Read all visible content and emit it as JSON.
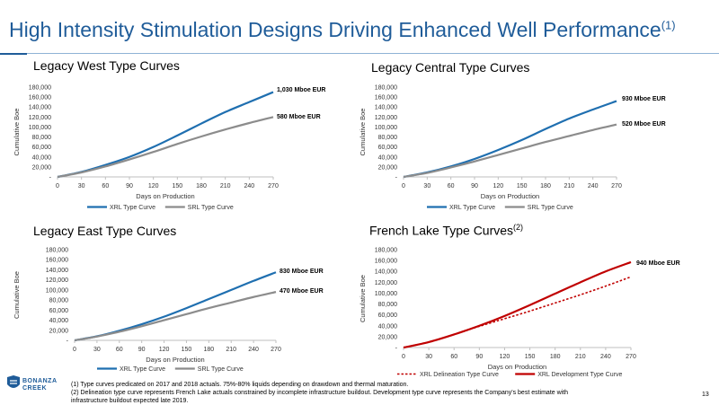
{
  "page": {
    "title": "High Intensity Stimulation Designs Driving Enhanced Well Performance",
    "title_sup": "(1)",
    "footnote1": "(1) Type curves predicated on 2017 and 2018 actuals. 75%-80% liquids depending on drawdown and thermal maturation.",
    "footnote2": "(2) Delineation type curve represents French Lake actuals constrained by incomplete infrastructure buildout. Development type curve represents the Company's best estimate with",
    "footnote3": "infrastructure buildout expected late 2019.",
    "page_number": "13",
    "logo_text_1": "BONANZA",
    "logo_text_2": "CREEK",
    "colors": {
      "title": "#1f5c99",
      "xrl": "#1f6fb0",
      "srl": "#8c8c8c",
      "french": "#c00000"
    }
  },
  "chart_data": [
    {
      "type": "line",
      "title": "Legacy West Type Curves",
      "title_sup": "",
      "xlabel": "Days on Production",
      "ylabel": "Cumulative Boe",
      "x_ticks": [
        "0",
        "30",
        "60",
        "90",
        "120",
        "150",
        "180",
        "210",
        "240",
        "270"
      ],
      "y_ticks": [
        "-",
        "20,000",
        "40,000",
        "60,000",
        "80,000",
        "100,000",
        "120,000",
        "140,000",
        "160,000",
        "180,000"
      ],
      "xlim": [
        0,
        270
      ],
      "ylim": [
        0,
        180000
      ],
      "x": [
        0,
        30,
        60,
        90,
        120,
        150,
        180,
        210,
        240,
        270
      ],
      "series": [
        {
          "name": "XRL Type Curve",
          "values": [
            0,
            10000,
            24000,
            40000,
            60000,
            83000,
            107000,
            130000,
            150000,
            170000
          ],
          "color": "#1f6fb0",
          "dash": false
        },
        {
          "name": "SRL Type Curve",
          "values": [
            0,
            9000,
            21000,
            35000,
            50000,
            66000,
            81000,
            95000,
            108000,
            120000
          ],
          "color": "#8c8c8c",
          "dash": false
        }
      ],
      "annotations": [
        "1,030 Mboe EUR",
        "580 Mboe EUR"
      ],
      "legend": "bottom"
    },
    {
      "type": "line",
      "title": "Legacy Central Type Curves",
      "title_sup": "",
      "xlabel": "Days on Production",
      "ylabel": "Cumulative Boe",
      "x_ticks": [
        "0",
        "30",
        "60",
        "90",
        "120",
        "150",
        "180",
        "210",
        "240",
        "270"
      ],
      "y_ticks": [
        "-",
        "20,000",
        "40,000",
        "60,000",
        "80,000",
        "100,000",
        "120,000",
        "140,000",
        "160,000",
        "180,000"
      ],
      "xlim": [
        0,
        270
      ],
      "ylim": [
        0,
        180000
      ],
      "x": [
        0,
        30,
        60,
        90,
        120,
        150,
        180,
        210,
        240,
        270
      ],
      "series": [
        {
          "name": "XRL Type Curve",
          "values": [
            0,
            9000,
            21000,
            36000,
            54000,
            74000,
            96000,
            117000,
            135000,
            152000
          ],
          "color": "#1f6fb0",
          "dash": false
        },
        {
          "name": "SRL Type Curve",
          "values": [
            0,
            8000,
            19000,
            31000,
            44000,
            57000,
            70000,
            82000,
            94000,
            105000
          ],
          "color": "#8c8c8c",
          "dash": false
        }
      ],
      "annotations": [
        "930 Mboe EUR",
        "520 Mboe EUR"
      ],
      "legend": "bottom"
    },
    {
      "type": "line",
      "title": "Legacy East Type Curves",
      "title_sup": "",
      "xlabel": "Days on Production",
      "ylabel": "Cumulative Boe",
      "x_ticks": [
        "0",
        "30",
        "60",
        "90",
        "120",
        "150",
        "180",
        "210",
        "240",
        "270"
      ],
      "y_ticks": [
        "-",
        "20,000",
        "40,000",
        "60,000",
        "80,000",
        "100,000",
        "120,000",
        "140,000",
        "160,000",
        "180,000"
      ],
      "xlim": [
        0,
        270
      ],
      "ylim": [
        0,
        180000
      ],
      "x": [
        0,
        30,
        60,
        90,
        120,
        150,
        180,
        210,
        240,
        270
      ],
      "series": [
        {
          "name": "XRL Type Curve",
          "values": [
            0,
            8000,
            19000,
            32000,
            47000,
            64000,
            82000,
            100000,
            118000,
            135000
          ],
          "color": "#1f6fb0",
          "dash": false
        },
        {
          "name": "SRL Type Curve",
          "values": [
            0,
            7500,
            17000,
            28000,
            40000,
            52000,
            64000,
            75000,
            86000,
            96000
          ],
          "color": "#8c8c8c",
          "dash": false
        }
      ],
      "annotations": [
        "830 Mboe EUR",
        "470 Mboe EUR"
      ],
      "legend": "bottom"
    },
    {
      "type": "line",
      "title": "French Lake Type Curves",
      "title_sup": "(2)",
      "xlabel": "Days on Production",
      "ylabel": "Cumulative Boe",
      "x_ticks": [
        "0",
        "30",
        "60",
        "90",
        "120",
        "150",
        "180",
        "210",
        "240",
        "270"
      ],
      "y_ticks": [
        "-",
        "20,000",
        "40,000",
        "60,000",
        "80,000",
        "100,000",
        "120,000",
        "140,000",
        "160,000",
        "180,000"
      ],
      "xlim": [
        0,
        270
      ],
      "ylim": [
        0,
        180000
      ],
      "x": [
        0,
        30,
        60,
        90,
        120,
        150,
        180,
        210,
        240,
        270
      ],
      "series": [
        {
          "name": "XRL Delineation Type Curve",
          "values": [
            0,
            10000,
            24000,
            39000,
            53000,
            67000,
            82000,
            97000,
            113000,
            130000
          ],
          "color": "#c00000",
          "dash": true
        },
        {
          "name": "XRL Development Type Curve",
          "values": [
            0,
            10000,
            24000,
            40000,
            58000,
            78000,
            99000,
            120000,
            140000,
            157000
          ],
          "color": "#c00000",
          "dash": false
        }
      ],
      "annotations": [
        "940 Mboe EUR"
      ],
      "legend": "bottom"
    }
  ]
}
